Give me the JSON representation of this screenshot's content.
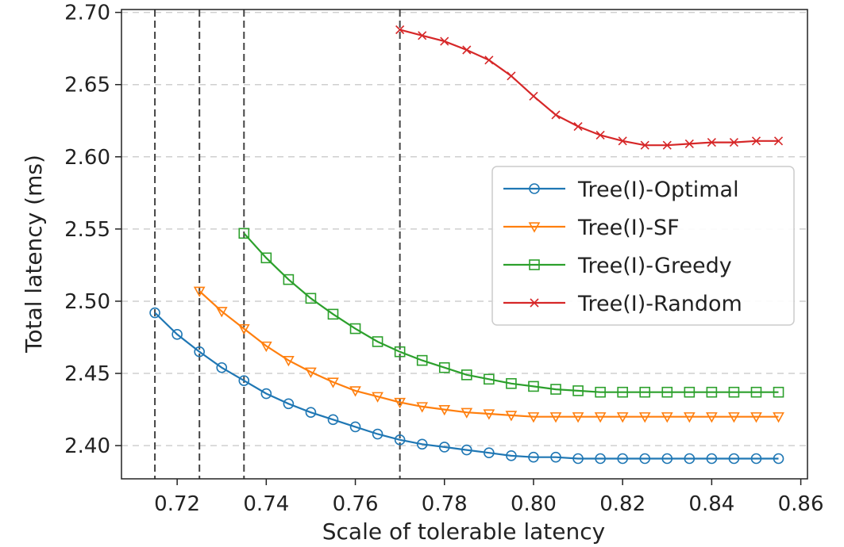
{
  "chart_data": {
    "type": "line",
    "xlabel": "Scale of tolerable latency",
    "ylabel": "Total latency (ms)",
    "xlim": [
      0.7075,
      0.8615
    ],
    "ylim": [
      2.377,
      2.702
    ],
    "xticks": [
      0.72,
      0.74,
      0.76,
      0.78,
      0.8,
      0.82,
      0.84,
      0.86
    ],
    "xtick_labels": [
      "0.72",
      "0.74",
      "0.76",
      "0.78",
      "0.80",
      "0.82",
      "0.84",
      "0.86"
    ],
    "yticks": [
      2.4,
      2.45,
      2.5,
      2.55,
      2.6,
      2.65,
      2.7
    ],
    "ytick_labels": [
      "2.40",
      "2.45",
      "2.50",
      "2.55",
      "2.60",
      "2.65",
      "2.70"
    ],
    "grid": "horizontal dashed",
    "legend_position": "center-right",
    "vlines": [
      0.715,
      0.725,
      0.735,
      0.77
    ],
    "series": [
      {
        "name": "Tree(I)-Optimal",
        "color": "#1f77b4",
        "marker": "circle",
        "x": [
          0.715,
          0.72,
          0.725,
          0.73,
          0.735,
          0.74,
          0.745,
          0.75,
          0.755,
          0.76,
          0.765,
          0.77,
          0.775,
          0.78,
          0.785,
          0.79,
          0.795,
          0.8,
          0.805,
          0.81,
          0.815,
          0.82,
          0.825,
          0.83,
          0.835,
          0.84,
          0.845,
          0.85,
          0.855
        ],
        "values": [
          2.492,
          2.477,
          2.465,
          2.454,
          2.445,
          2.436,
          2.429,
          2.423,
          2.418,
          2.413,
          2.408,
          2.404,
          2.401,
          2.399,
          2.397,
          2.395,
          2.393,
          2.392,
          2.392,
          2.391,
          2.391,
          2.391,
          2.391,
          2.391,
          2.391,
          2.391,
          2.391,
          2.391,
          2.391
        ]
      },
      {
        "name": "Tree(I)-SF",
        "color": "#ff7f0e",
        "marker": "triangle-down",
        "x": [
          0.725,
          0.73,
          0.735,
          0.74,
          0.745,
          0.75,
          0.755,
          0.76,
          0.765,
          0.77,
          0.775,
          0.78,
          0.785,
          0.79,
          0.795,
          0.8,
          0.805,
          0.81,
          0.815,
          0.82,
          0.825,
          0.83,
          0.835,
          0.84,
          0.845,
          0.85,
          0.855
        ],
        "values": [
          2.507,
          2.493,
          2.481,
          2.469,
          2.459,
          2.451,
          2.444,
          2.438,
          2.434,
          2.43,
          2.427,
          2.425,
          2.423,
          2.422,
          2.421,
          2.42,
          2.42,
          2.42,
          2.42,
          2.42,
          2.42,
          2.42,
          2.42,
          2.42,
          2.42,
          2.42,
          2.42
        ]
      },
      {
        "name": "Tree(I)-Greedy",
        "color": "#2ca02c",
        "marker": "square",
        "x": [
          0.735,
          0.74,
          0.745,
          0.75,
          0.755,
          0.76,
          0.765,
          0.77,
          0.775,
          0.78,
          0.785,
          0.79,
          0.795,
          0.8,
          0.805,
          0.81,
          0.815,
          0.82,
          0.825,
          0.83,
          0.835,
          0.84,
          0.845,
          0.85,
          0.855
        ],
        "values": [
          2.547,
          2.53,
          2.515,
          2.502,
          2.491,
          2.481,
          2.472,
          2.465,
          2.459,
          2.454,
          2.449,
          2.446,
          2.443,
          2.441,
          2.439,
          2.438,
          2.437,
          2.437,
          2.437,
          2.437,
          2.437,
          2.437,
          2.437,
          2.437,
          2.437
        ]
      },
      {
        "name": "Tree(I)-Random",
        "color": "#d62728",
        "marker": "x",
        "x": [
          0.77,
          0.775,
          0.78,
          0.785,
          0.79,
          0.795,
          0.8,
          0.805,
          0.81,
          0.815,
          0.82,
          0.825,
          0.83,
          0.835,
          0.84,
          0.845,
          0.85,
          0.855
        ],
        "values": [
          2.688,
          2.684,
          2.68,
          2.674,
          2.667,
          2.656,
          2.642,
          2.629,
          2.621,
          2.615,
          2.611,
          2.608,
          2.608,
          2.609,
          2.61,
          2.61,
          2.611,
          2.611
        ]
      }
    ]
  }
}
